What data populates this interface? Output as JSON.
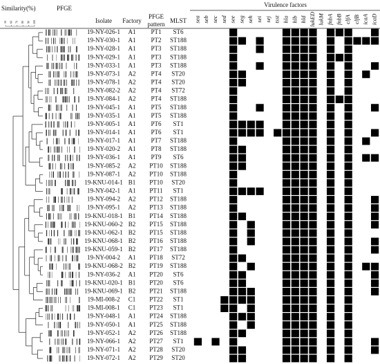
{
  "header": {
    "similarity": "Similarity(%)",
    "pfge": "PFGE",
    "isolate": "Isolate",
    "factory": "Factory",
    "pfge_pattern_1": "PFGE",
    "pfge_pattern_2": "pattern",
    "mlst": "MLST",
    "virulence": "Virulence factors"
  },
  "similarity_ticks": [
    "50",
    "60",
    "70",
    "80",
    "90",
    "100"
  ],
  "virulence_factors": [
    "sea",
    "seb",
    "sec",
    "sed",
    "see",
    "seg",
    "seh",
    "sei",
    "sej",
    "tsst",
    "hla",
    "hlb",
    "hld",
    "lukED",
    "lukM",
    "fnbA",
    "fnbB",
    "clfA",
    "clfB",
    "icaA",
    "icaD"
  ],
  "rows": [
    {
      "isolate": "19-NY-026-1",
      "factory": "A1",
      "pfge_pattern": "PT1",
      "mlst": "ST6",
      "factors": [
        0,
        0,
        0,
        0,
        1,
        0,
        0,
        0,
        0,
        0,
        1,
        1,
        1,
        1,
        0,
        1,
        1,
        1,
        0,
        0,
        1
      ]
    },
    {
      "isolate": "19-NY-030-1",
      "factory": "A1",
      "pfge_pattern": "PT2",
      "mlst": "ST188",
      "factors": [
        0,
        0,
        0,
        0,
        1,
        1,
        0,
        1,
        0,
        0,
        1,
        1,
        1,
        1,
        0,
        1,
        0,
        1,
        1,
        1,
        1
      ]
    },
    {
      "isolate": "19-NY-028-1",
      "factory": "A1",
      "pfge_pattern": "PT3",
      "mlst": "ST188",
      "factors": [
        0,
        0,
        0,
        0,
        1,
        0,
        0,
        1,
        0,
        0,
        1,
        1,
        1,
        1,
        0,
        1,
        0,
        1,
        0,
        0,
        0
      ]
    },
    {
      "isolate": "19-NY-029-1",
      "factory": "A1",
      "pfge_pattern": "PT3",
      "mlst": "ST188",
      "factors": [
        0,
        0,
        0,
        0,
        1,
        0,
        0,
        0,
        0,
        0,
        1,
        1,
        1,
        1,
        0,
        1,
        1,
        1,
        0,
        0,
        0
      ]
    },
    {
      "isolate": "19-NY-033-1",
      "factory": "A1",
      "pfge_pattern": "PT3",
      "mlst": "ST188",
      "factors": [
        0,
        0,
        0,
        0,
        1,
        0,
        0,
        1,
        0,
        0,
        1,
        1,
        1,
        1,
        0,
        1,
        0,
        1,
        0,
        0,
        1
      ]
    },
    {
      "isolate": "19-NY-073-1",
      "factory": "A2",
      "pfge_pattern": "PT4",
      "mlst": "ST20",
      "factors": [
        0,
        0,
        0,
        0,
        1,
        1,
        0,
        0,
        0,
        0,
        1,
        1,
        1,
        1,
        0,
        1,
        0,
        1,
        0,
        1,
        0
      ]
    },
    {
      "isolate": "19-NY-078-1",
      "factory": "A2",
      "pfge_pattern": "PT4",
      "mlst": "ST20",
      "factors": [
        0,
        0,
        0,
        0,
        1,
        1,
        0,
        0,
        0,
        0,
        1,
        1,
        1,
        1,
        0,
        1,
        0,
        1,
        0,
        0,
        0
      ]
    },
    {
      "isolate": "19-NY-082-2",
      "factory": "A2",
      "pfge_pattern": "PT4",
      "mlst": "ST72",
      "factors": [
        0,
        0,
        0,
        0,
        1,
        0,
        0,
        0,
        0,
        0,
        1,
        1,
        1,
        1,
        0,
        1,
        0,
        1,
        0,
        0,
        0
      ]
    },
    {
      "isolate": "19-NY-084-1",
      "factory": "A2",
      "pfge_pattern": "PT4",
      "mlst": "ST188",
      "factors": [
        0,
        0,
        0,
        0,
        1,
        0,
        0,
        0,
        0,
        0,
        1,
        1,
        1,
        1,
        0,
        1,
        1,
        1,
        0,
        0,
        0
      ]
    },
    {
      "isolate": "19-NY-045-1",
      "factory": "A1",
      "pfge_pattern": "PT5",
      "mlst": "ST188",
      "factors": [
        0,
        0,
        0,
        0,
        1,
        0,
        0,
        1,
        0,
        0,
        1,
        1,
        1,
        1,
        0,
        1,
        0,
        1,
        0,
        0,
        1
      ]
    },
    {
      "isolate": "19-NY-035-1",
      "factory": "A1",
      "pfge_pattern": "PT5",
      "mlst": "ST188",
      "factors": [
        0,
        0,
        0,
        0,
        1,
        0,
        0,
        0,
        0,
        0,
        1,
        1,
        1,
        1,
        0,
        1,
        0,
        1,
        0,
        0,
        0
      ]
    },
    {
      "isolate": "19-NY-005-1",
      "factory": "A1",
      "pfge_pattern": "PT6",
      "mlst": "ST1",
      "factors": [
        0,
        0,
        0,
        0,
        1,
        1,
        1,
        1,
        0,
        0,
        1,
        1,
        1,
        1,
        0,
        1,
        0,
        1,
        0,
        0,
        0
      ]
    },
    {
      "isolate": "19-NY-014-1",
      "factory": "A1",
      "pfge_pattern": "PT6",
      "mlst": "ST1",
      "factors": [
        0,
        0,
        0,
        0,
        1,
        1,
        1,
        1,
        0,
        1,
        1,
        1,
        1,
        1,
        0,
        1,
        0,
        1,
        0,
        0,
        1
      ]
    },
    {
      "isolate": "19-NY-017-1",
      "factory": "A1",
      "pfge_pattern": "PT7",
      "mlst": "ST188",
      "factors": [
        0,
        0,
        0,
        0,
        1,
        0,
        0,
        0,
        0,
        0,
        1,
        1,
        1,
        1,
        0,
        1,
        0,
        1,
        0,
        1,
        0
      ]
    },
    {
      "isolate": "19-NY-020-2",
      "factory": "A1",
      "pfge_pattern": "PT8",
      "mlst": "ST188",
      "factors": [
        0,
        0,
        0,
        0,
        1,
        1,
        0,
        0,
        0,
        0,
        1,
        1,
        1,
        1,
        0,
        1,
        0,
        1,
        0,
        0,
        0
      ]
    },
    {
      "isolate": "19-NY-036-1",
      "factory": "A1",
      "pfge_pattern": "PT9",
      "mlst": "ST6",
      "factors": [
        0,
        0,
        0,
        0,
        1,
        1,
        0,
        0,
        0,
        0,
        1,
        1,
        1,
        1,
        0,
        1,
        0,
        1,
        0,
        1,
        1
      ]
    },
    {
      "isolate": "19-NY-085-2",
      "factory": "A2",
      "pfge_pattern": "PT10",
      "mlst": "ST188",
      "factors": [
        0,
        0,
        0,
        0,
        1,
        1,
        0,
        0,
        0,
        0,
        1,
        1,
        1,
        1,
        0,
        1,
        0,
        1,
        0,
        0,
        0
      ]
    },
    {
      "isolate": "19-NY-087-1",
      "factory": "A2",
      "pfge_pattern": "PT10",
      "mlst": "ST188",
      "factors": [
        0,
        0,
        0,
        0,
        1,
        0,
        0,
        0,
        0,
        0,
        1,
        1,
        1,
        1,
        0,
        1,
        0,
        1,
        0,
        0,
        0
      ]
    },
    {
      "isolate": "19-KNU-014-1",
      "factory": "B1",
      "pfge_pattern": "PT10",
      "mlst": "ST20",
      "factors": [
        0,
        0,
        0,
        0,
        1,
        0,
        0,
        0,
        0,
        0,
        1,
        1,
        1,
        1,
        0,
        1,
        0,
        1,
        0,
        0,
        0
      ]
    },
    {
      "isolate": "19-NY-042-1",
      "factory": "A1",
      "pfge_pattern": "PT11",
      "mlst": "ST1",
      "factors": [
        0,
        0,
        0,
        0,
        1,
        1,
        1,
        1,
        0,
        0,
        1,
        1,
        1,
        1,
        0,
        1,
        0,
        1,
        0,
        0,
        0
      ]
    },
    {
      "isolate": "19-NY-094-2",
      "factory": "A2",
      "pfge_pattern": "PT12",
      "mlst": "ST188",
      "factors": [
        0,
        0,
        0,
        0,
        1,
        0,
        0,
        0,
        0,
        0,
        1,
        1,
        1,
        1,
        0,
        1,
        0,
        1,
        0,
        0,
        1
      ]
    },
    {
      "isolate": "19-NY-095-1",
      "factory": "A2",
      "pfge_pattern": "PT13",
      "mlst": "ST188",
      "factors": [
        0,
        0,
        0,
        0,
        1,
        0,
        0,
        0,
        0,
        0,
        1,
        1,
        1,
        1,
        0,
        1,
        0,
        1,
        0,
        0,
        1
      ]
    },
    {
      "isolate": "19-KNU-018-1",
      "factory": "B1",
      "pfge_pattern": "PT14",
      "mlst": "ST188",
      "factors": [
        0,
        0,
        0,
        0,
        1,
        1,
        0,
        0,
        0,
        0,
        1,
        1,
        1,
        1,
        0,
        1,
        0,
        1,
        0,
        0,
        1
      ]
    },
    {
      "isolate": "19-KNU-060-2",
      "factory": "B2",
      "pfge_pattern": "PT15",
      "mlst": "ST188",
      "factors": [
        0,
        0,
        0,
        0,
        1,
        0,
        1,
        0,
        0,
        0,
        1,
        1,
        1,
        1,
        0,
        1,
        0,
        1,
        0,
        0,
        1
      ]
    },
    {
      "isolate": "19-KNU-062-1",
      "factory": "B2",
      "pfge_pattern": "PT15",
      "mlst": "ST188",
      "factors": [
        0,
        0,
        0,
        0,
        1,
        0,
        1,
        0,
        0,
        0,
        1,
        1,
        1,
        1,
        0,
        1,
        0,
        1,
        0,
        0,
        0
      ]
    },
    {
      "isolate": "19-KNU-068-1",
      "factory": "B2",
      "pfge_pattern": "PT16",
      "mlst": "ST188",
      "factors": [
        0,
        0,
        0,
        0,
        1,
        0,
        1,
        0,
        0,
        0,
        1,
        1,
        1,
        1,
        0,
        1,
        0,
        1,
        0,
        0,
        1
      ]
    },
    {
      "isolate": "19-KNU-059-1",
      "factory": "B2",
      "pfge_pattern": "PT17",
      "mlst": "ST188",
      "factors": [
        0,
        0,
        0,
        0,
        1,
        0,
        0,
        0,
        0,
        0,
        1,
        1,
        1,
        1,
        0,
        1,
        0,
        1,
        0,
        0,
        1
      ]
    },
    {
      "isolate": "19-NY-004-2",
      "factory": "A1",
      "pfge_pattern": "PT18",
      "mlst": "ST72",
      "factors": [
        0,
        0,
        0,
        0,
        1,
        1,
        0,
        0,
        0,
        0,
        1,
        1,
        1,
        1,
        0,
        1,
        0,
        1,
        0,
        0,
        0
      ]
    },
    {
      "isolate": "19-KNU-068-2",
      "factory": "B2",
      "pfge_pattern": "PT19",
      "mlst": "ST188",
      "factors": [
        0,
        0,
        0,
        0,
        1,
        0,
        1,
        0,
        0,
        0,
        1,
        1,
        1,
        1,
        0,
        1,
        0,
        1,
        0,
        1,
        1
      ]
    },
    {
      "isolate": "19-NY-036-2",
      "factory": "A1",
      "pfge_pattern": "PT20",
      "mlst": "ST6",
      "factors": [
        0,
        0,
        0,
        0,
        1,
        1,
        0,
        0,
        0,
        0,
        1,
        1,
        1,
        1,
        0,
        1,
        0,
        1,
        0,
        0,
        1
      ]
    },
    {
      "isolate": "19-KNU-020-1",
      "factory": "B1",
      "pfge_pattern": "PT20",
      "mlst": "ST6",
      "factors": [
        0,
        0,
        0,
        0,
        1,
        1,
        0,
        0,
        0,
        0,
        1,
        1,
        1,
        1,
        0,
        1,
        0,
        1,
        0,
        0,
        1
      ]
    },
    {
      "isolate": "19-KNU-069-1",
      "factory": "B2",
      "pfge_pattern": "PT21",
      "mlst": "ST188",
      "factors": [
        0,
        0,
        0,
        0,
        1,
        1,
        1,
        0,
        0,
        0,
        1,
        1,
        1,
        1,
        0,
        1,
        0,
        1,
        0,
        0,
        1
      ]
    },
    {
      "isolate": "19-MI-008-2",
      "factory": "C1",
      "pfge_pattern": "PT22",
      "mlst": "ST1",
      "factors": [
        0,
        0,
        0,
        1,
        1,
        1,
        1,
        0,
        0,
        0,
        1,
        1,
        1,
        1,
        0,
        1,
        0,
        1,
        0,
        0,
        0
      ]
    },
    {
      "isolate": "19-MI-008-1",
      "factory": "C1",
      "pfge_pattern": "PT23",
      "mlst": "ST1",
      "factors": [
        0,
        0,
        0,
        1,
        1,
        0,
        1,
        0,
        0,
        0,
        1,
        1,
        1,
        1,
        0,
        1,
        0,
        1,
        0,
        0,
        0
      ]
    },
    {
      "isolate": "19-NY-048-1",
      "factory": "A1",
      "pfge_pattern": "PT24",
      "mlst": "ST188",
      "factors": [
        0,
        0,
        0,
        0,
        1,
        1,
        1,
        0,
        0,
        0,
        1,
        1,
        1,
        1,
        0,
        1,
        0,
        1,
        0,
        0,
        0
      ]
    },
    {
      "isolate": "19-NY-050-1",
      "factory": "A1",
      "pfge_pattern": "PT25",
      "mlst": "ST188",
      "factors": [
        0,
        0,
        0,
        0,
        1,
        0,
        1,
        0,
        0,
        0,
        1,
        1,
        1,
        1,
        0,
        1,
        0,
        1,
        0,
        0,
        0
      ]
    },
    {
      "isolate": "19-NY-052-1",
      "factory": "A2",
      "pfge_pattern": "PT26",
      "mlst": "ST188",
      "factors": [
        0,
        0,
        0,
        0,
        1,
        1,
        0,
        0,
        0,
        0,
        1,
        1,
        1,
        1,
        0,
        1,
        0,
        1,
        0,
        0,
        0
      ]
    },
    {
      "isolate": "19-NY-066-1",
      "factory": "A2",
      "pfge_pattern": "PT27",
      "mlst": "ST1",
      "factors": [
        1,
        0,
        1,
        0,
        1,
        0,
        0,
        0,
        0,
        0,
        1,
        1,
        1,
        1,
        0,
        1,
        0,
        1,
        0,
        0,
        1
      ]
    },
    {
      "isolate": "19-NY-071-1",
      "factory": "A2",
      "pfge_pattern": "PT28",
      "mlst": "ST20",
      "factors": [
        0,
        0,
        0,
        0,
        1,
        1,
        0,
        0,
        0,
        0,
        1,
        1,
        1,
        1,
        0,
        1,
        0,
        1,
        0,
        0,
        1
      ]
    },
    {
      "isolate": "19-NY-072-1",
      "factory": "A2",
      "pfge_pattern": "PT29",
      "mlst": "ST20",
      "factors": [
        0,
        0,
        0,
        0,
        1,
        1,
        0,
        0,
        0,
        0,
        1,
        1,
        1,
        1,
        0,
        1,
        0,
        1,
        0,
        0,
        0
      ]
    }
  ]
}
